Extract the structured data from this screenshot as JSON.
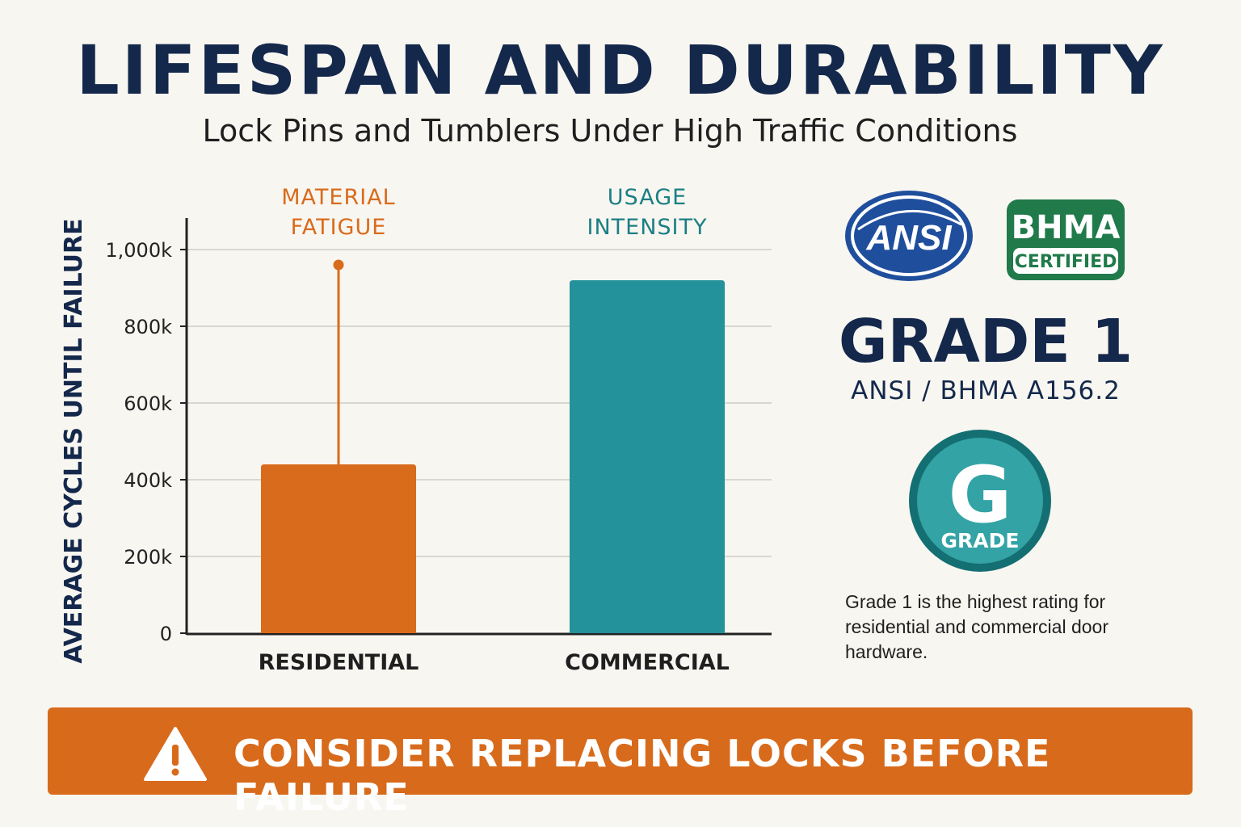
{
  "header": {
    "title": "LIFESPAN AND DURABILITY",
    "subtitle": "Lock Pins and Tumblers Under High Traffic Conditions"
  },
  "chart_data": {
    "type": "bar",
    "title": "",
    "ylabel": "AVERAGE CYCLES UNTIL FAILURE",
    "xlabel": "",
    "categories": [
      "RESIDENTIAL",
      "COMMERCIAL"
    ],
    "values": [
      440000,
      920000
    ],
    "ylim": [
      0,
      1000000
    ],
    "yticks": [
      0,
      200000,
      400000,
      600000,
      800000,
      1000000
    ],
    "ytick_labels": [
      "0",
      "200k",
      "400k",
      "600k",
      "800k",
      "1,000k"
    ],
    "grid": true,
    "colors": [
      "#d96b1c",
      "#23929a"
    ],
    "annotations": [
      {
        "category": "RESIDENTIAL",
        "text": "MATERIAL FATIGUE",
        "line_top": 960000,
        "color": "#d96b1c"
      },
      {
        "category": "COMMERCIAL",
        "text": "USAGE INTENSITY",
        "color": "#1b7f83"
      }
    ]
  },
  "certification": {
    "ansi_logo_text": "ANSI",
    "bhma_logo_text": "BHMA",
    "bhma_certified_text": "CERTIFIED",
    "grade_title": "GRADE 1",
    "standard": "ANSI / BHMA A156.2",
    "badge_letter": "G",
    "badge_label": "GRADE",
    "note": "Grade 1 is the highest rating for residential and commercial door hardware."
  },
  "banner": {
    "icon": "warning-icon",
    "text": "CONSIDER REPLACING LOCKS BEFORE FAILURE"
  },
  "colors": {
    "navy": "#14284b",
    "orange": "#d96b1c",
    "teal": "#23929a",
    "bhma_green": "#207a4a",
    "ansi_blue": "#1f4f9c"
  }
}
